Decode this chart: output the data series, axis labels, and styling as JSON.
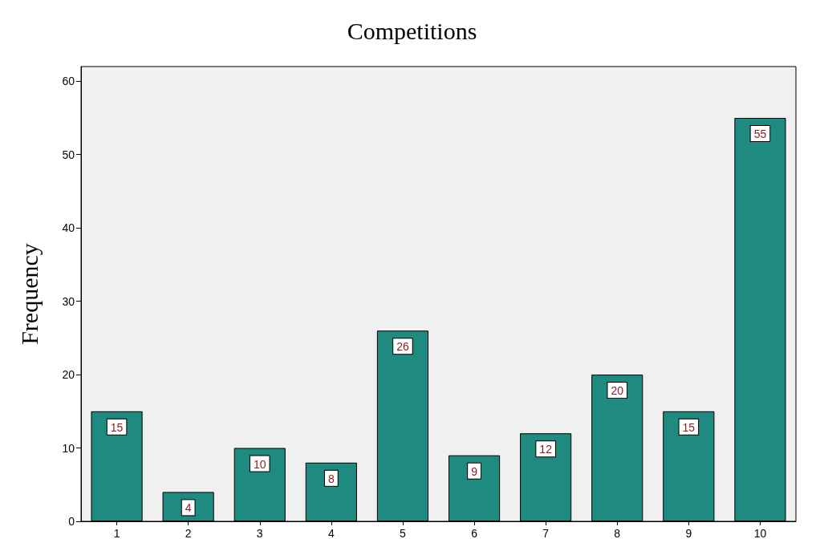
{
  "chart_data": {
    "type": "bar",
    "title": "Competitions",
    "ylabel": "Frequency",
    "categories": [
      "1",
      "2",
      "3",
      "4",
      "5",
      "6",
      "7",
      "8",
      "9",
      "10"
    ],
    "values": [
      15,
      4,
      10,
      8,
      26,
      9,
      12,
      20,
      15,
      55
    ],
    "color": "#1f8a80",
    "ylim": [
      0,
      62
    ],
    "yticks": [
      0,
      10,
      20,
      30,
      40,
      50,
      60
    ],
    "grid": false,
    "data_labels": true
  }
}
